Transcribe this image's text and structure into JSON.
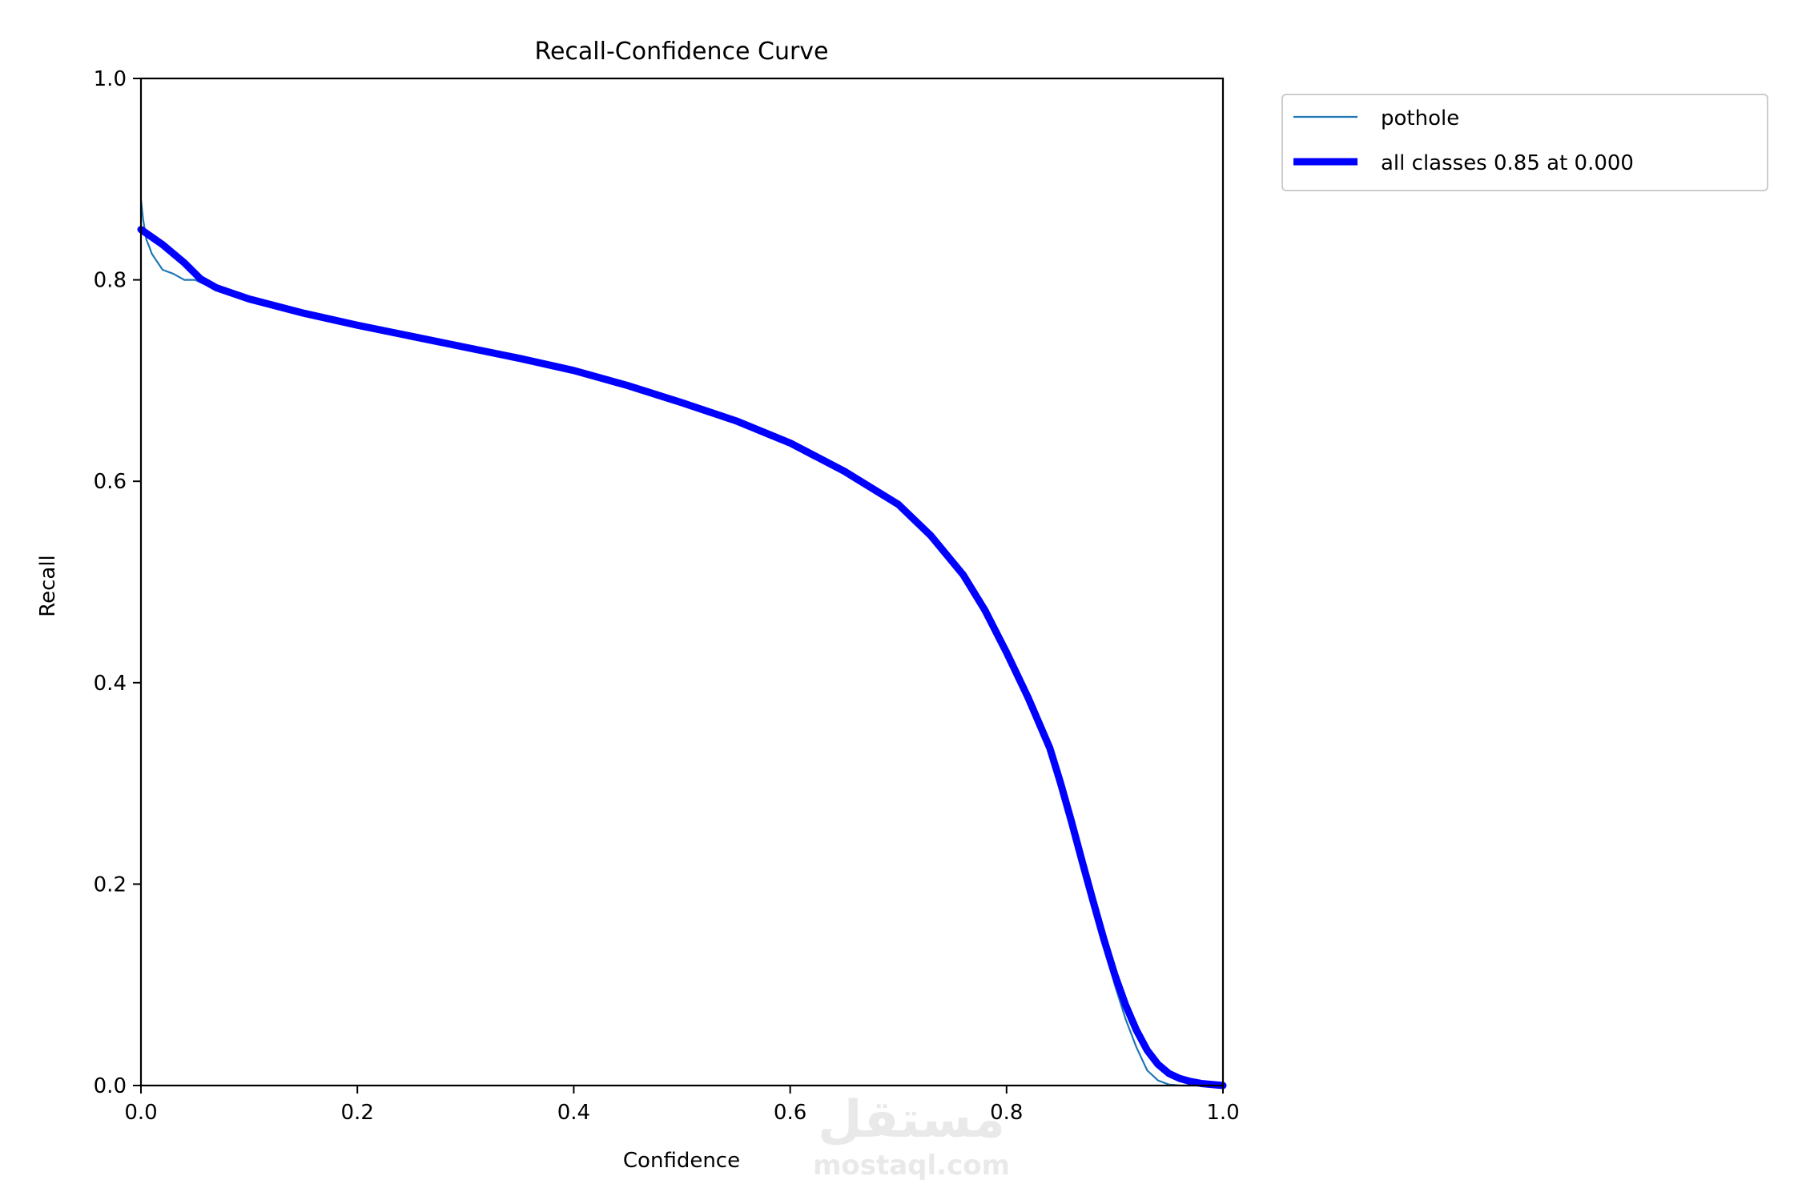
{
  "chart_data": {
    "type": "line",
    "title": "Recall-Confidence Curve",
    "xlabel": "Confidence",
    "ylabel": "Recall",
    "xlim": [
      0,
      1
    ],
    "ylim": [
      0,
      1
    ],
    "xticks": [
      "0.0",
      "0.2",
      "0.4",
      "0.6",
      "0.8",
      "1.0"
    ],
    "yticks": [
      "0.0",
      "0.2",
      "0.4",
      "0.6",
      "0.8",
      "1.0"
    ],
    "grid": false,
    "legend_position": "outside-top-right",
    "series": [
      {
        "name": "pothole",
        "color": "#1f77b4",
        "x": [
          0.0,
          0.002,
          0.005,
          0.008,
          0.01,
          0.015,
          0.02,
          0.03,
          0.04,
          0.05,
          0.06,
          0.08,
          0.1,
          0.15,
          0.2,
          0.25,
          0.3,
          0.35,
          0.4,
          0.45,
          0.5,
          0.55,
          0.6,
          0.65,
          0.7,
          0.73,
          0.76,
          0.78,
          0.8,
          0.82,
          0.84,
          0.85,
          0.86,
          0.87,
          0.88,
          0.89,
          0.9,
          0.91,
          0.92,
          0.93,
          0.94,
          0.95,
          0.96,
          0.97,
          0.98,
          0.99,
          1.0
        ],
        "y": [
          0.88,
          0.86,
          0.84,
          0.832,
          0.826,
          0.818,
          0.81,
          0.806,
          0.8,
          0.8,
          0.795,
          0.787,
          0.78,
          0.767,
          0.755,
          0.744,
          0.733,
          0.722,
          0.71,
          0.695,
          0.678,
          0.66,
          0.638,
          0.61,
          0.578,
          0.548,
          0.508,
          0.472,
          0.43,
          0.39,
          0.34,
          0.3,
          0.262,
          0.222,
          0.18,
          0.14,
          0.1,
          0.066,
          0.038,
          0.015,
          0.005,
          0.001,
          0.0,
          0.0,
          0.0,
          0.0,
          0.0
        ]
      },
      {
        "name": "all classes 0.85 at 0.000",
        "color": "#0000ff",
        "x": [
          0.0,
          0.02,
          0.04,
          0.055,
          0.07,
          0.1,
          0.15,
          0.2,
          0.25,
          0.3,
          0.35,
          0.4,
          0.45,
          0.5,
          0.55,
          0.6,
          0.65,
          0.7,
          0.73,
          0.76,
          0.78,
          0.8,
          0.82,
          0.84,
          0.85,
          0.86,
          0.87,
          0.88,
          0.89,
          0.9,
          0.91,
          0.92,
          0.93,
          0.94,
          0.95,
          0.96,
          0.97,
          0.98,
          0.99,
          1.0
        ],
        "y": [
          0.85,
          0.835,
          0.817,
          0.801,
          0.792,
          0.781,
          0.767,
          0.755,
          0.744,
          0.733,
          0.722,
          0.71,
          0.695,
          0.678,
          0.66,
          0.638,
          0.61,
          0.577,
          0.546,
          0.507,
          0.472,
          0.43,
          0.385,
          0.335,
          0.3,
          0.262,
          0.222,
          0.183,
          0.145,
          0.11,
          0.08,
          0.055,
          0.035,
          0.021,
          0.012,
          0.007,
          0.004,
          0.002,
          0.001,
          0.0
        ]
      }
    ]
  },
  "watermark": {
    "arabic": "مستقل",
    "latin": "mostaql.com"
  }
}
